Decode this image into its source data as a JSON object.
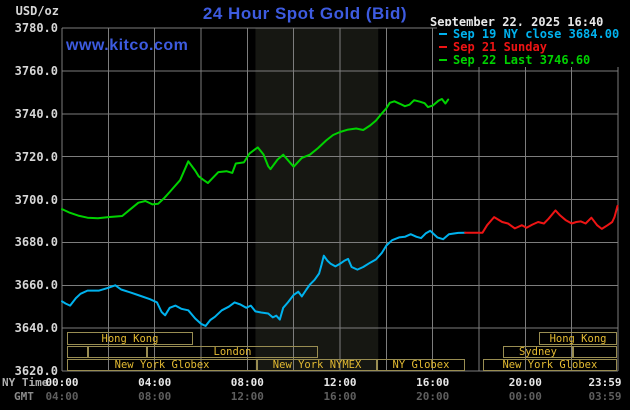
{
  "header": {
    "title": "24 Hour Spot Gold (Bid)",
    "datetime": "September 22, 2025 16:40",
    "watermark": "www.kitco.com"
  },
  "colors": {
    "title": "#3d5be0",
    "watermark": "#3d5be0",
    "date_text": "#e8e8e8",
    "grid": "#7d7d7d",
    "band": "#161712",
    "axis_text": "#d6d6d6",
    "ny_tick_text": "#e8e8e8",
    "ny_time_label": "#b0b0b0",
    "gmt_label": "#8a8a8a",
    "gmt_tick_text": "#5e5e5e",
    "session_border": "#998d52",
    "session_text": "#e3ba32"
  },
  "legend": [
    {
      "label": "Sep 19 NY close 3684.00",
      "color": "#00b2ee"
    },
    {
      "label": "Sep 21 Sunday",
      "color": "#ee1414"
    },
    {
      "label": "Sep 22 Last 3746.60",
      "color": "#00d200"
    }
  ],
  "y_axis": {
    "unit": "USD/oz",
    "ticks": [
      "3780.0",
      "3760.0",
      "3740.0",
      "3720.0",
      "3700.0",
      "3680.0",
      "3660.0",
      "3640.0",
      "3620.0"
    ],
    "max": 3780,
    "min": 3620,
    "step": 20
  },
  "x_axis": {
    "ny_label": "NY Time",
    "gmt_label": "GMT",
    "ny_ticks": [
      {
        "text": "00:00",
        "hour": 0
      },
      {
        "text": "04:00",
        "hour": 4
      },
      {
        "text": "08:00",
        "hour": 8
      },
      {
        "text": "12:00",
        "hour": 12
      },
      {
        "text": "16:00",
        "hour": 16
      },
      {
        "text": "20:00",
        "hour": 20
      },
      {
        "text": "23:59",
        "hour": 23.983
      }
    ],
    "gmt_ticks": [
      {
        "text": "04:00",
        "hour": 0
      },
      {
        "text": "08:00",
        "hour": 4
      },
      {
        "text": "12:00",
        "hour": 8
      },
      {
        "text": "16:00",
        "hour": 12
      },
      {
        "text": "20:00",
        "hour": 16
      },
      {
        "text": "00:00",
        "hour": 20
      },
      {
        "text": "03:59",
        "hour": 23.983
      }
    ]
  },
  "sessions": {
    "rows": [
      [
        {
          "label": "Hong Kong",
          "start": 0.22,
          "end": 5.65
        },
        {
          "label": "Hong Kong",
          "start": 20.6,
          "end": 23.95
        }
      ],
      [
        {
          "label": "",
          "start": 0.22,
          "end": 1.12
        },
        {
          "label": "",
          "start": 1.12,
          "end": 3.67
        },
        {
          "label": "London",
          "start": 3.67,
          "end": 11.05
        },
        {
          "label": "Sydney",
          "start": 19.03,
          "end": 22.06
        },
        {
          "label": "",
          "start": 22.06,
          "end": 23.95
        }
      ],
      [
        {
          "label": "New York Globex",
          "start": 0.22,
          "end": 8.42
        },
        {
          "label": "New York NYMEX",
          "start": 8.42,
          "end": 13.6
        },
        {
          "label": "NY Globex",
          "start": 13.6,
          "end": 17.39
        },
        {
          "label": "New York Globex",
          "start": 18.17,
          "end": 23.95
        }
      ]
    ]
  },
  "chart_data": {
    "type": "line",
    "title": "24 Hour Spot Gold (Bid)",
    "xlabel": "NY Time (hours 00:00-23:59)",
    "ylabel": "USD/oz",
    "ylim": [
      3620,
      3780
    ],
    "xlim_hours": [
      0,
      24
    ],
    "grid": true,
    "highlight_band_hours": [
      8.35,
      13.65
    ],
    "legend_position": "top-right",
    "series": [
      {
        "name": "Sep 19 NY close 3684.00",
        "color": "#00b2ee",
        "points": [
          [
            0.0,
            3652.5
          ],
          [
            0.15,
            3651.5
          ],
          [
            0.35,
            3650.5
          ],
          [
            0.6,
            3654
          ],
          [
            0.8,
            3656
          ],
          [
            1.1,
            3657.5
          ],
          [
            1.6,
            3657.5
          ],
          [
            2.0,
            3658.8
          ],
          [
            2.3,
            3660
          ],
          [
            2.55,
            3658
          ],
          [
            3.0,
            3656.5
          ],
          [
            3.4,
            3655
          ],
          [
            3.8,
            3653.5
          ],
          [
            4.1,
            3652
          ],
          [
            4.3,
            3647.5
          ],
          [
            4.45,
            3646
          ],
          [
            4.65,
            3649.5
          ],
          [
            4.9,
            3650.5
          ],
          [
            5.15,
            3649
          ],
          [
            5.45,
            3648.3
          ],
          [
            5.75,
            3644.5
          ],
          [
            6.0,
            3642
          ],
          [
            6.2,
            3641
          ],
          [
            6.4,
            3643.8
          ],
          [
            6.6,
            3645.3
          ],
          [
            6.9,
            3648.3
          ],
          [
            7.2,
            3650
          ],
          [
            7.45,
            3652
          ],
          [
            7.7,
            3651
          ],
          [
            7.95,
            3649.5
          ],
          [
            8.15,
            3650.5
          ],
          [
            8.35,
            3647.8
          ],
          [
            8.6,
            3647.3
          ],
          [
            8.9,
            3646.8
          ],
          [
            9.1,
            3645
          ],
          [
            9.25,
            3645.8
          ],
          [
            9.4,
            3644
          ],
          [
            9.55,
            3649.5
          ],
          [
            9.75,
            3652
          ],
          [
            10.0,
            3655.5
          ],
          [
            10.2,
            3657
          ],
          [
            10.35,
            3654.8
          ],
          [
            10.55,
            3658
          ],
          [
            10.7,
            3660.3
          ],
          [
            10.9,
            3662.5
          ],
          [
            11.1,
            3665.5
          ],
          [
            11.2,
            3669.5
          ],
          [
            11.3,
            3673.8
          ],
          [
            11.45,
            3671.5
          ],
          [
            11.6,
            3670
          ],
          [
            11.8,
            3668.8
          ],
          [
            12.0,
            3670
          ],
          [
            12.2,
            3671.5
          ],
          [
            12.35,
            3672.3
          ],
          [
            12.5,
            3668.5
          ],
          [
            12.75,
            3667.3
          ],
          [
            13.0,
            3668.5
          ],
          [
            13.3,
            3670.5
          ],
          [
            13.55,
            3672
          ],
          [
            13.8,
            3675
          ],
          [
            14.0,
            3678.5
          ],
          [
            14.25,
            3681
          ],
          [
            14.55,
            3682.3
          ],
          [
            14.8,
            3682.6
          ],
          [
            15.05,
            3683.8
          ],
          [
            15.3,
            3682.6
          ],
          [
            15.5,
            3682
          ],
          [
            15.7,
            3684.2
          ],
          [
            15.9,
            3685.4
          ],
          [
            16.2,
            3682.3
          ],
          [
            16.45,
            3681.5
          ],
          [
            16.7,
            3683.8
          ],
          [
            17.1,
            3684.4
          ],
          [
            17.4,
            3684.5
          ]
        ]
      },
      {
        "name": "Sep 21 Sunday",
        "color": "#ee1414",
        "points": [
          [
            17.4,
            3684.5
          ],
          [
            18.15,
            3684.5
          ],
          [
            18.35,
            3688
          ],
          [
            18.55,
            3690.5
          ],
          [
            18.65,
            3691.8
          ],
          [
            19.0,
            3689.5
          ],
          [
            19.25,
            3688.8
          ],
          [
            19.55,
            3686.5
          ],
          [
            19.85,
            3688
          ],
          [
            20.05,
            3686.8
          ],
          [
            20.3,
            3688.3
          ],
          [
            20.55,
            3689.5
          ],
          [
            20.8,
            3688.8
          ],
          [
            21.0,
            3691
          ],
          [
            21.3,
            3694.9
          ],
          [
            21.5,
            3692.6
          ],
          [
            21.75,
            3690.3
          ],
          [
            22.0,
            3688.8
          ],
          [
            22.2,
            3689.5
          ],
          [
            22.4,
            3689.8
          ],
          [
            22.6,
            3688.8
          ],
          [
            22.85,
            3691.5
          ],
          [
            23.1,
            3688
          ],
          [
            23.3,
            3686.3
          ],
          [
            23.55,
            3688
          ],
          [
            23.75,
            3689.5
          ],
          [
            23.85,
            3691.8
          ],
          [
            23.98,
            3697
          ]
        ]
      },
      {
        "name": "Sep 22 Last 3746.60",
        "color": "#00d200",
        "points": [
          [
            0.0,
            3695.5
          ],
          [
            0.3,
            3694
          ],
          [
            0.7,
            3692.5
          ],
          [
            1.1,
            3691.5
          ],
          [
            1.55,
            3691.3
          ],
          [
            2.0,
            3691.8
          ],
          [
            2.6,
            3692.3
          ],
          [
            2.9,
            3695
          ],
          [
            3.3,
            3698.5
          ],
          [
            3.6,
            3699.3
          ],
          [
            3.9,
            3697.7
          ],
          [
            4.15,
            3698
          ],
          [
            4.4,
            3700.5
          ],
          [
            4.65,
            3703.5
          ],
          [
            4.85,
            3706
          ],
          [
            5.1,
            3709
          ],
          [
            5.45,
            3717.8
          ],
          [
            5.75,
            3713.5
          ],
          [
            5.9,
            3710.8
          ],
          [
            6.1,
            3709.2
          ],
          [
            6.3,
            3707.7
          ],
          [
            6.5,
            3710
          ],
          [
            6.75,
            3712.8
          ],
          [
            7.1,
            3713.2
          ],
          [
            7.35,
            3712.4
          ],
          [
            7.5,
            3716.8
          ],
          [
            7.85,
            3717.3
          ],
          [
            8.1,
            3721.5
          ],
          [
            8.35,
            3723.5
          ],
          [
            8.45,
            3724.3
          ],
          [
            8.7,
            3721
          ],
          [
            8.9,
            3715.5
          ],
          [
            9.0,
            3714.2
          ],
          [
            9.3,
            3718.6
          ],
          [
            9.55,
            3720.9
          ],
          [
            9.85,
            3717.1
          ],
          [
            10.0,
            3715.3
          ],
          [
            10.35,
            3719.4
          ],
          [
            10.7,
            3720.9
          ],
          [
            11.05,
            3724
          ],
          [
            11.4,
            3727.5
          ],
          [
            11.7,
            3730.1
          ],
          [
            12.0,
            3731.5
          ],
          [
            12.35,
            3732.6
          ],
          [
            12.7,
            3733.1
          ],
          [
            13.0,
            3732.4
          ],
          [
            13.3,
            3734.5
          ],
          [
            13.55,
            3736.8
          ],
          [
            13.75,
            3739.4
          ],
          [
            14.0,
            3742.5
          ],
          [
            14.15,
            3745.1
          ],
          [
            14.35,
            3745.8
          ],
          [
            14.6,
            3744.6
          ],
          [
            14.8,
            3743.5
          ],
          [
            15.0,
            3744.2
          ],
          [
            15.2,
            3746.3
          ],
          [
            15.45,
            3745.6
          ],
          [
            15.65,
            3744.9
          ],
          [
            15.8,
            3743.1
          ],
          [
            16.0,
            3743.8
          ],
          [
            16.25,
            3746.1
          ],
          [
            16.4,
            3746.9
          ],
          [
            16.55,
            3744.8
          ],
          [
            16.67,
            3746.6
          ]
        ]
      }
    ]
  }
}
